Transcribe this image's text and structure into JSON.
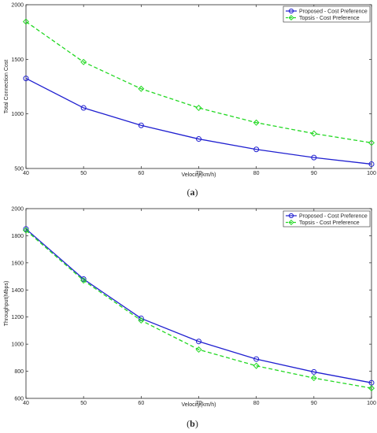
{
  "colors": {
    "proposed": "#1f1fd0",
    "topsis": "#22d822",
    "axis": "#262626"
  },
  "chart_data": [
    {
      "type": "line",
      "panel_label": "(a)",
      "xlabel": "Velocity(km/h)",
      "ylabel": "Total Connection Cost",
      "xlim": [
        40,
        100
      ],
      "ylim": [
        500,
        2000
      ],
      "x_ticks": [
        40,
        50,
        60,
        70,
        80,
        90,
        100
      ],
      "y_ticks": [
        500,
        1000,
        1500,
        2000
      ],
      "x": [
        40,
        50,
        60,
        70,
        80,
        90,
        100
      ],
      "series": [
        {
          "name": "Proposed - Cost Preference",
          "values": [
            1325,
            1055,
            895,
            770,
            675,
            600,
            540
          ]
        },
        {
          "name": "Topsis - Cost Preference",
          "values": [
            1845,
            1475,
            1230,
            1055,
            920,
            820,
            735
          ]
        }
      ],
      "legend": "top-right"
    },
    {
      "type": "line",
      "panel_label": "(b)",
      "xlabel": "Velocity(km/h)",
      "ylabel": "Throughput(Mbps)",
      "xlim": [
        40,
        100
      ],
      "ylim": [
        600,
        2000
      ],
      "x_ticks": [
        40,
        50,
        60,
        70,
        80,
        90,
        100
      ],
      "y_ticks": [
        600,
        800,
        1000,
        1200,
        1400,
        1600,
        1800,
        2000
      ],
      "x": [
        40,
        50,
        60,
        70,
        80,
        90,
        100
      ],
      "series": [
        {
          "name": "Proposed - Cost Preference",
          "values": [
            1850,
            1480,
            1190,
            1020,
            890,
            795,
            715
          ]
        },
        {
          "name": "Topsis - Cost Preference",
          "values": [
            1840,
            1470,
            1175,
            960,
            840,
            750,
            675
          ]
        }
      ],
      "legend": "top-right"
    }
  ]
}
